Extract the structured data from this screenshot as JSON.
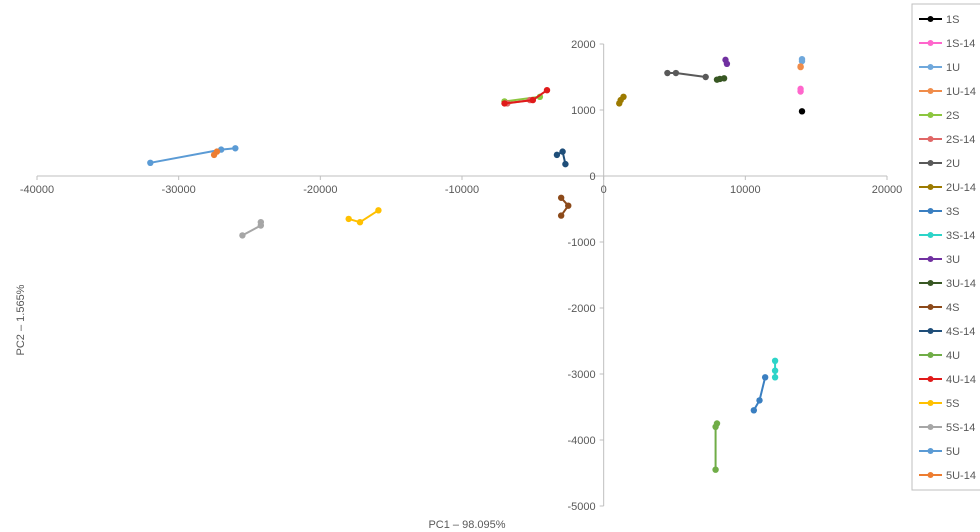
{
  "chart_data": {
    "type": "scatter",
    "title": "",
    "xlabel": "PC1 – 98.095%",
    "ylabel": "PC2 – 1.565%",
    "xlim": [
      -40000,
      20000
    ],
    "ylim": [
      -5000,
      2000
    ],
    "x_ticks": [
      -40000,
      -30000,
      -20000,
      -10000,
      0,
      10000,
      20000
    ],
    "y_ticks": [
      -5000,
      -4000,
      -3000,
      -2000,
      -1000,
      0,
      1000,
      2000
    ],
    "grid": false,
    "legend_position": "right",
    "series": [
      {
        "name": "1S",
        "color": "#000000",
        "points": [
          [
            14000,
            980
          ]
        ]
      },
      {
        "name": "1S-14",
        "color": "#ff66cc",
        "points": [
          [
            13900,
            1320
          ],
          [
            13900,
            1280
          ]
        ]
      },
      {
        "name": "1U",
        "color": "#6fa8dc",
        "points": [
          [
            14000,
            1770
          ],
          [
            14000,
            1740
          ]
        ]
      },
      {
        "name": "1U-14",
        "color": "#f08c4a",
        "points": [
          [
            13900,
            1650
          ],
          [
            13900,
            1660
          ]
        ]
      },
      {
        "name": "2S",
        "color": "#8cc63f",
        "points": [
          [
            -7000,
            1130
          ],
          [
            -4500,
            1200
          ]
        ]
      },
      {
        "name": "2S-14",
        "color": "#e06666",
        "points": [
          [
            -6800,
            1100
          ],
          [
            -5200,
            1150
          ]
        ]
      },
      {
        "name": "2U",
        "color": "#595959",
        "points": [
          [
            4500,
            1560
          ],
          [
            5100,
            1560
          ],
          [
            7200,
            1500
          ]
        ]
      },
      {
        "name": "2U-14",
        "color": "#9c7a00",
        "points": [
          [
            1100,
            1100
          ],
          [
            1200,
            1150
          ],
          [
            1400,
            1200
          ]
        ]
      },
      {
        "name": "3S",
        "color": "#3a7fc1",
        "points": [
          [
            10600,
            -3550
          ],
          [
            11000,
            -3400
          ],
          [
            11400,
            -3050
          ]
        ]
      },
      {
        "name": "3S-14",
        "color": "#2dd4c8",
        "points": [
          [
            12100,
            -2800
          ],
          [
            12100,
            -2950
          ],
          [
            12100,
            -3050
          ]
        ]
      },
      {
        "name": "3U",
        "color": "#7030a0",
        "points": [
          [
            8600,
            1760
          ],
          [
            8700,
            1700
          ]
        ]
      },
      {
        "name": "3U-14",
        "color": "#385723",
        "points": [
          [
            8000,
            1460
          ],
          [
            8200,
            1470
          ],
          [
            8500,
            1480
          ]
        ]
      },
      {
        "name": "4S",
        "color": "#8c4a1a",
        "points": [
          [
            -3000,
            -330
          ],
          [
            -2500,
            -450
          ],
          [
            -3000,
            -600
          ]
        ]
      },
      {
        "name": "4S-14",
        "color": "#1f4e79",
        "points": [
          [
            -3300,
            320
          ],
          [
            -2900,
            370
          ],
          [
            -2700,
            180
          ]
        ]
      },
      {
        "name": "4U",
        "color": "#70ad47",
        "points": [
          [
            8000,
            -3750
          ],
          [
            7900,
            -3800
          ],
          [
            7900,
            -4450
          ]
        ]
      },
      {
        "name": "4U-14",
        "color": "#e01a1a",
        "points": [
          [
            -7000,
            1100
          ],
          [
            -5000,
            1150
          ],
          [
            -4000,
            1300
          ]
        ]
      },
      {
        "name": "5S",
        "color": "#ffc000",
        "points": [
          [
            -18000,
            -650
          ],
          [
            -17200,
            -700
          ],
          [
            -15900,
            -520
          ]
        ]
      },
      {
        "name": "5S-14",
        "color": "#a6a6a6",
        "points": [
          [
            -25500,
            -900
          ],
          [
            -24200,
            -750
          ],
          [
            -24200,
            -700
          ]
        ]
      },
      {
        "name": "5U",
        "color": "#5b9bd5",
        "points": [
          [
            -32000,
            200
          ],
          [
            -27000,
            400
          ],
          [
            -26000,
            420
          ]
        ]
      },
      {
        "name": "5U-14",
        "color": "#ed7d31",
        "points": [
          [
            -27500,
            320
          ],
          [
            -27300,
            370
          ]
        ]
      }
    ]
  }
}
